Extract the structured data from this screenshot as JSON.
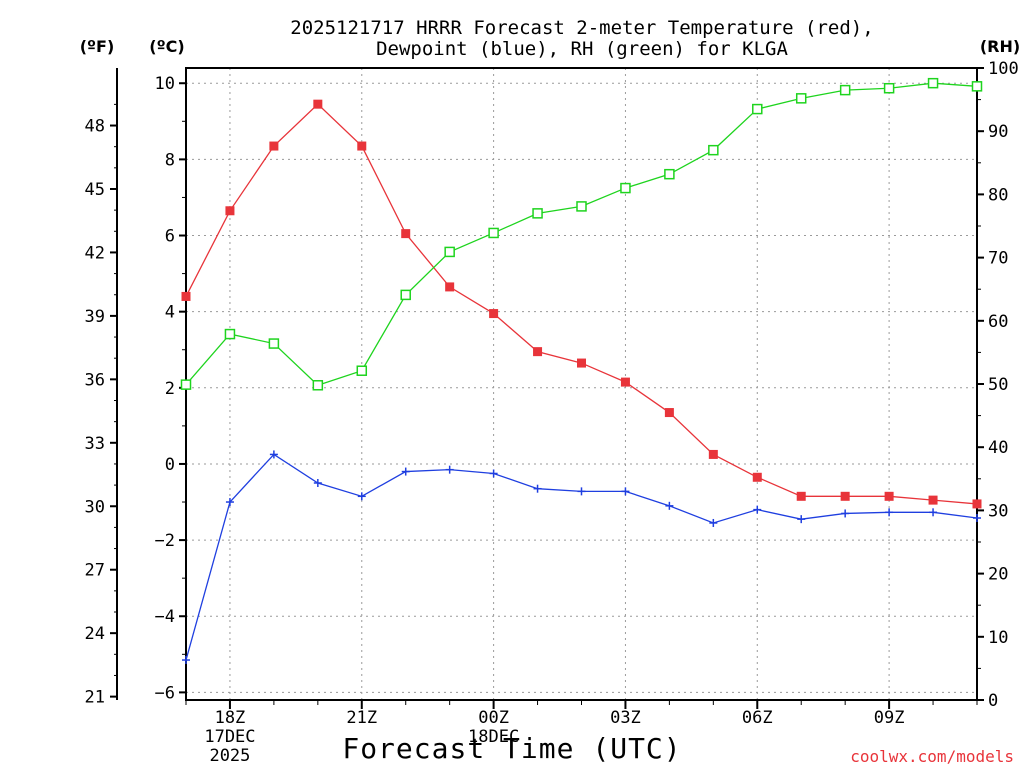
{
  "chart_data": {
    "type": "line",
    "title_line1": "2025121717 HRRR Forecast 2-meter Temperature (red),",
    "title_line2": "Dewpoint (blue), RH (green) for KLGA",
    "xlabel": "Forecast Time (UTC)",
    "credit": "coolwx.com/models",
    "units": {
      "fahrenheit": "(ºF)",
      "celsius": "(ºC)",
      "rh": "(RH)"
    },
    "celsius_axis": {
      "ylim": [
        -6.2,
        10.4
      ],
      "ticks": [
        "−6",
        "−4",
        "−2",
        "0",
        "2",
        "4",
        "6",
        "8",
        "10"
      ],
      "tick_values": [
        -6,
        -4,
        -2,
        0,
        2,
        4,
        6,
        8,
        10
      ]
    },
    "fahrenheit_axis": {
      "ticks": [
        "21",
        "24",
        "27",
        "30",
        "33",
        "36",
        "39",
        "42",
        "45",
        "48"
      ]
    },
    "rh_axis": {
      "ylim": [
        0,
        100
      ],
      "ticks": [
        "0",
        "10",
        "20",
        "30",
        "40",
        "50",
        "60",
        "70",
        "80",
        "90",
        "100"
      ]
    },
    "x_hours": [
      17,
      18,
      19,
      20,
      21,
      22,
      23,
      24,
      25,
      26,
      27,
      28,
      29,
      30,
      31,
      32,
      33,
      34,
      35
    ],
    "x_ticks": [
      {
        "hour": 18,
        "lines": [
          "18Z",
          "17DEC",
          "2025"
        ]
      },
      {
        "hour": 21,
        "lines": [
          "21Z"
        ]
      },
      {
        "hour": 24,
        "lines": [
          "00Z",
          "18DEC"
        ]
      },
      {
        "hour": 27,
        "lines": [
          "03Z"
        ]
      },
      {
        "hour": 30,
        "lines": [
          "06Z"
        ]
      },
      {
        "hour": 33,
        "lines": [
          "09Z"
        ]
      }
    ],
    "series": [
      {
        "values": [
          4.4,
          6.65,
          8.35,
          9.45,
          8.35,
          6.05,
          4.65,
          3.95,
          2.95,
          2.65,
          2.15,
          1.35,
          0.25,
          -0.35,
          -0.85,
          -0.85,
          -0.85,
          -0.95,
          -1.05
        ],
        "axis": "celsius",
        "color": "#e8343a",
        "marker": "filled-square"
      },
      {
        "values": [
          -5.15,
          -1.0,
          0.25,
          -0.5,
          -0.85,
          -0.2,
          -0.15,
          -0.25,
          -0.65,
          -0.72,
          -0.72,
          -1.1,
          -1.55,
          -1.2,
          -1.45,
          -1.3,
          -1.27,
          -1.27,
          -1.42
        ],
        "axis": "celsius",
        "color": "#1f3fe0",
        "marker": "plus"
      },
      {
        "values": [
          49.9,
          57.9,
          56.4,
          49.8,
          52.1,
          64.1,
          70.9,
          73.9,
          77.0,
          78.1,
          81.0,
          83.2,
          87.0,
          93.5,
          95.2,
          96.5,
          96.8,
          97.6,
          97.1
        ],
        "axis": "rh",
        "color": "#1ed41e",
        "marker": "open-square"
      }
    ],
    "grid": true
  }
}
